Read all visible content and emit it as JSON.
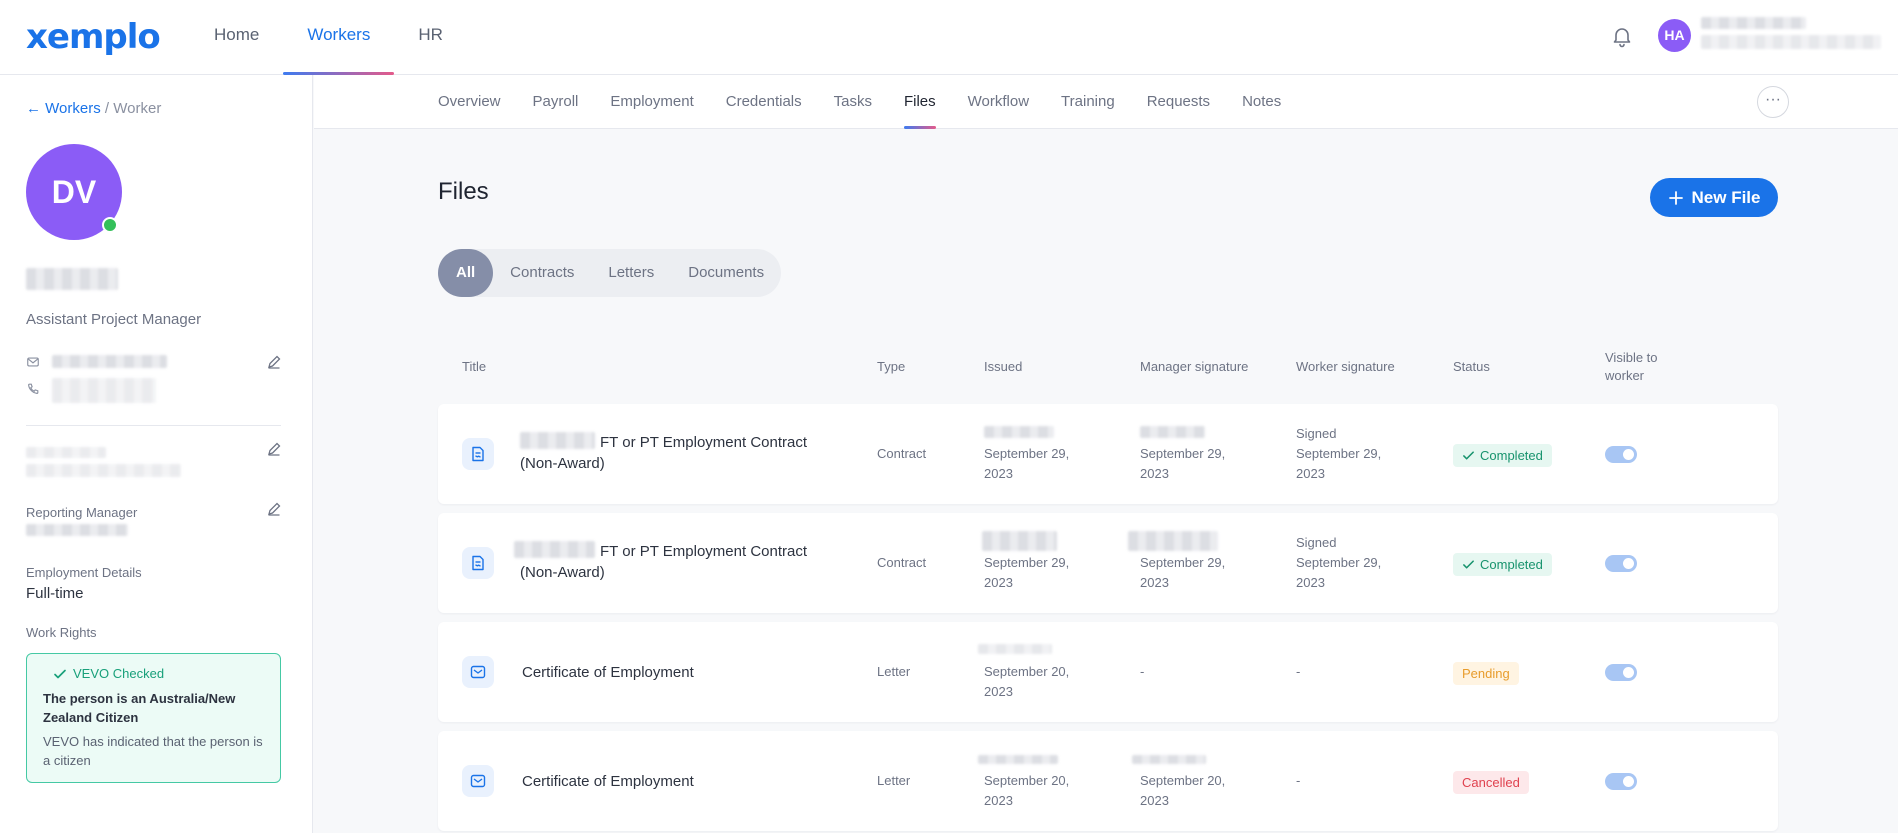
{
  "app": {
    "logo": "xemplo"
  },
  "topnav": {
    "items": [
      "Home",
      "Workers",
      "HR"
    ],
    "active": "Workers"
  },
  "user": {
    "initials": "HA"
  },
  "breadcrumb": {
    "back_label": "← Workers",
    "separator": " / ",
    "current": "Worker"
  },
  "worker": {
    "initials": "DV",
    "job_title": "Assistant Project Manager",
    "reporting_manager_label": "Reporting Manager",
    "employment_details_label": "Employment Details",
    "employment_details_value": "Full-time",
    "work_rights_label": "Work Rights",
    "vevo": {
      "badge": "VEVO Checked",
      "headline": "The person is an Australia/New Zealand Citizen",
      "detail": "VEVO has indicated that the person is a citizen"
    }
  },
  "subnav": {
    "tabs": [
      "Overview",
      "Payroll",
      "Employment",
      "Credentials",
      "Tasks",
      "Files",
      "Workflow",
      "Training",
      "Requests",
      "Notes"
    ],
    "active": "Files",
    "more_label": "···"
  },
  "files": {
    "title": "Files",
    "new_button": "New File",
    "filters": [
      "All",
      "Contracts",
      "Letters",
      "Documents"
    ],
    "active_filter": "All",
    "columns": [
      "Title",
      "Type",
      "Issued",
      "Manager signature",
      "Worker signature",
      "Status",
      "Visible to worker"
    ],
    "rows": [
      {
        "title_suffix": "FT or PT Employment Contract",
        "title_line2": "(Non-Award)",
        "type": "Contract",
        "issued_line1": "September 29,",
        "issued_line2": "2023",
        "manager_line1": "September 29,",
        "manager_line2": "2023",
        "worker_line0": "Signed",
        "worker_line1": "September 29,",
        "worker_line2": "2023",
        "status": "Completed",
        "visible": true
      },
      {
        "title_suffix": "FT or PT Employment Contract",
        "title_line2": "(Non-Award)",
        "type": "Contract",
        "issued_line1": "September 29,",
        "issued_line2": "2023",
        "manager_line1": "September 29,",
        "manager_line2": "2023",
        "worker_line0": "Signed",
        "worker_line1": "September 29,",
        "worker_line2": "2023",
        "status": "Completed",
        "visible": true
      },
      {
        "title": "Certificate of Employment",
        "type": "Letter",
        "issued_line1": "September 20,",
        "issued_line2": "2023",
        "manager": "-",
        "worker": "-",
        "status": "Pending",
        "visible": true
      },
      {
        "title": "Certificate of Employment",
        "type": "Letter",
        "issued_line1": "September 20,",
        "issued_line2": "2023",
        "manager_line1": "September 20,",
        "manager_line2": "2023",
        "worker": "-",
        "status": "Cancelled",
        "visible": true
      }
    ]
  },
  "colors": {
    "accent": "#1a73e8",
    "avatar": "#8b5cf6",
    "online": "#34c05a",
    "completed": "#17936d",
    "pending": "#e89c2c",
    "cancelled": "#e0424f"
  },
  "icons": [
    "bell-icon",
    "mail-icon",
    "phone-icon",
    "edit-icon",
    "check-icon",
    "plus-icon",
    "contract-icon",
    "letter-icon",
    "more-icon"
  ]
}
